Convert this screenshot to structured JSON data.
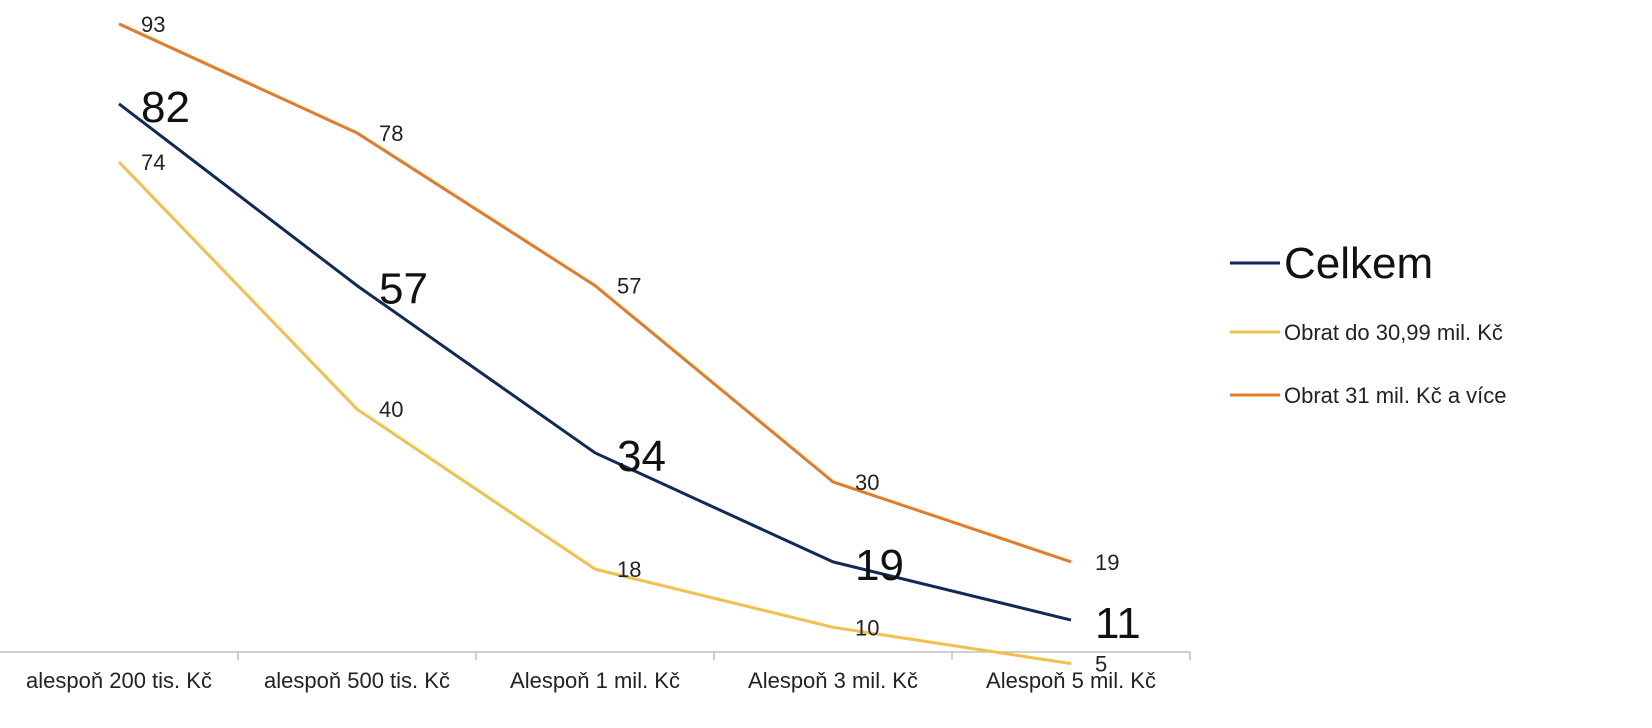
{
  "chart_data": {
    "type": "line",
    "categories": [
      "alespoň 200 tis. Kč",
      "alespoň 500 tis. Kč",
      "Alespoň 1 mil. Kč",
      "Alespoň 3 mil. Kč",
      "Alespoň 5 mil. Kč"
    ],
    "series": [
      {
        "name": "Celkem",
        "values": [
          82,
          57,
          34,
          19,
          11
        ],
        "color": "#0e2a5a",
        "emphasis": true
      },
      {
        "name": "Obrat do 30,99 mil. Kč",
        "values": [
          74,
          40,
          18,
          10,
          5
        ],
        "color": "#f2c04b",
        "emphasis": false
      },
      {
        "name": "Obrat 31 mil. Kč a více",
        "values": [
          93,
          78,
          57,
          30,
          19
        ],
        "color": "#e57b25",
        "emphasis": false
      }
    ],
    "ylim": [
      0,
      100
    ],
    "grid": false,
    "legend": "right",
    "data_labels": true
  }
}
